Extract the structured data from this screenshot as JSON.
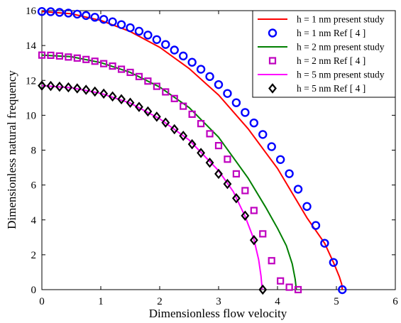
{
  "chart_data": {
    "type": "line",
    "xlabel": "Dimensionless flow velocity",
    "ylabel": "Dimensionless natural frequency",
    "xlim": [
      0,
      6
    ],
    "ylim": [
      0,
      16
    ],
    "xticks": [
      0,
      1,
      2,
      3,
      4,
      5,
      6
    ],
    "yticks": [
      0,
      2,
      4,
      6,
      8,
      10,
      12,
      14,
      16
    ],
    "grid": false,
    "legend_position": "top-right",
    "series": [
      {
        "name": "h = 1 nm present study",
        "kind": "line",
        "color": "#ff0000",
        "x": [
          0,
          0.5,
          1.0,
          1.5,
          2.0,
          2.5,
          3.0,
          3.5,
          4.0,
          4.5,
          4.8,
          4.95,
          5.05,
          5.09,
          5.1
        ],
        "y": [
          15.95,
          15.82,
          15.44,
          14.8,
          13.9,
          12.68,
          11.16,
          9.23,
          6.95,
          4.12,
          2.66,
          1.56,
          0.74,
          0.31,
          0.0
        ]
      },
      {
        "name": "h = 1 nm Ref [ 4 ]",
        "kind": "marker",
        "marker": "circle",
        "color": "#0000ff",
        "x": [
          0.0,
          0.15,
          0.3,
          0.45,
          0.6,
          0.75,
          0.9,
          1.05,
          1.2,
          1.35,
          1.5,
          1.65,
          1.8,
          1.95,
          2.1,
          2.25,
          2.4,
          2.55,
          2.7,
          2.85,
          3.0,
          3.15,
          3.3,
          3.45,
          3.6,
          3.75,
          3.9,
          4.05,
          4.2,
          4.35,
          4.5,
          4.65,
          4.8,
          4.95,
          5.1
        ],
        "y": [
          15.95,
          15.94,
          15.9,
          15.86,
          15.8,
          15.72,
          15.62,
          15.5,
          15.36,
          15.2,
          15.02,
          14.82,
          14.6,
          14.34,
          14.06,
          13.74,
          13.4,
          13.04,
          12.64,
          12.22,
          11.76,
          11.25,
          10.72,
          10.16,
          9.56,
          8.9,
          8.2,
          7.46,
          6.65,
          5.76,
          4.77,
          3.68,
          2.66,
          1.56,
          0.0
        ]
      },
      {
        "name": "h = 2 nm present study",
        "kind": "line",
        "color": "#007f00",
        "x": [
          0,
          0.5,
          1.0,
          1.5,
          2.0,
          2.5,
          3.0,
          3.5,
          3.8,
          4.0,
          4.15,
          4.25,
          4.3,
          4.32
        ],
        "y": [
          13.45,
          13.36,
          13.02,
          12.46,
          11.62,
          10.44,
          8.74,
          6.4,
          4.72,
          3.52,
          2.52,
          1.48,
          0.6,
          0.0
        ]
      },
      {
        "name": "h = 2 nm Ref [ 4 ]",
        "kind": "marker",
        "marker": "square",
        "color": "#bf00bf",
        "x": [
          0.0,
          0.15,
          0.3,
          0.45,
          0.6,
          0.75,
          0.9,
          1.05,
          1.2,
          1.35,
          1.5,
          1.65,
          1.8,
          1.95,
          2.1,
          2.25,
          2.4,
          2.55,
          2.7,
          2.85,
          3.0,
          3.15,
          3.3,
          3.45,
          3.6,
          3.75,
          3.9,
          4.05,
          4.2,
          4.35
        ],
        "y": [
          13.45,
          13.44,
          13.4,
          13.34,
          13.28,
          13.2,
          13.1,
          12.96,
          12.82,
          12.64,
          12.46,
          12.22,
          11.96,
          11.66,
          11.34,
          10.96,
          10.52,
          10.06,
          9.52,
          8.94,
          8.26,
          7.48,
          6.64,
          5.68,
          4.54,
          3.2,
          1.66,
          0.5,
          0.14,
          0.0
        ]
      },
      {
        "name": "h = 5 nm present study",
        "kind": "line",
        "color": "#ff00ff",
        "x": [
          0,
          0.5,
          1.0,
          1.5,
          2.0,
          2.5,
          3.0,
          3.25,
          3.45,
          3.6,
          3.68,
          3.72,
          3.74
        ],
        "y": [
          11.7,
          11.58,
          11.26,
          10.7,
          9.8,
          8.58,
          6.82,
          5.62,
          4.2,
          2.88,
          1.72,
          0.78,
          0.0
        ]
      },
      {
        "name": "h = 5 nm Ref [ 4 ]",
        "kind": "marker",
        "marker": "diamond",
        "color": "#000000",
        "x": [
          0.0,
          0.15,
          0.3,
          0.45,
          0.6,
          0.75,
          0.9,
          1.05,
          1.2,
          1.35,
          1.5,
          1.65,
          1.8,
          1.95,
          2.1,
          2.25,
          2.4,
          2.55,
          2.7,
          2.85,
          3.0,
          3.15,
          3.3,
          3.45,
          3.6,
          3.75
        ],
        "y": [
          11.7,
          11.68,
          11.64,
          11.6,
          11.54,
          11.46,
          11.36,
          11.24,
          11.08,
          10.92,
          10.72,
          10.48,
          10.22,
          9.92,
          9.58,
          9.2,
          8.82,
          8.34,
          7.84,
          7.28,
          6.64,
          6.06,
          5.24,
          4.24,
          2.84,
          0.0
        ]
      }
    ]
  }
}
